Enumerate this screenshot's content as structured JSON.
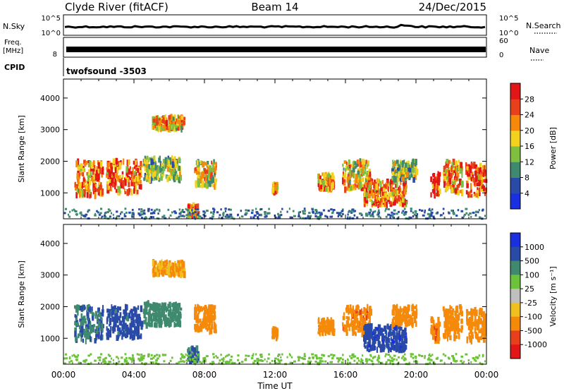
{
  "header": {
    "station": "Clyde River (fitACF)",
    "beam": "Beam 14",
    "date": "24/Dec/2015"
  },
  "status_panels": {
    "nsky_label": "N.Sky",
    "nsky_ticks": [
      "10^5",
      "10^0"
    ],
    "nsearch_label": "N.Search",
    "nsearch_ticks": [
      "10^5",
      "10^0"
    ],
    "freq_label_line1": "Freq.",
    "freq_label_line2": "[MHz]",
    "freq_ticks": [
      "8"
    ],
    "nave_label": "Nave",
    "nave_ticks": [
      "60",
      "0"
    ],
    "cpid_label": "CPID",
    "cpid_value": "twofsound -3503"
  },
  "colors": {
    "power_scale": [
      "#1a2fe0",
      "#2a4aa8",
      "#3f8a6e",
      "#7fbf3f",
      "#f2d21e",
      "#f58a0a",
      "#e8401a",
      "#e21616"
    ],
    "velocity_scale": [
      "#1a2fe0",
      "#2a4aa8",
      "#3f8a6e",
      "#6cc23a",
      "#bfbfbf",
      "#f0c020",
      "#f58a0a",
      "#e8401a",
      "#e21616"
    ]
  },
  "chart_data": [
    {
      "type": "heatmap",
      "name": "power",
      "ylabel": "Slant Range [km]",
      "yticks": [
        "1000",
        "2000",
        "3000",
        "4000"
      ],
      "ylim": [
        180,
        4600
      ],
      "xlim": [
        "00:00",
        "24:00"
      ],
      "colorbar_label": "Power [dB]",
      "colorbar_ticks": [
        "4",
        "8",
        "12",
        "16",
        "20",
        "24",
        "28"
      ],
      "clim": [
        0,
        32
      ],
      "echo_regions": [
        {
          "t0": 0.6,
          "t1": 2.2,
          "r0": 900,
          "r1": 2000,
          "level": 24
        },
        {
          "t0": 2.4,
          "t1": 4.4,
          "r0": 1000,
          "r1": 2000,
          "level": 26
        },
        {
          "t0": 4.5,
          "t1": 6.6,
          "r0": 1400,
          "r1": 2100,
          "level": 14
        },
        {
          "t0": 7.4,
          "t1": 8.6,
          "r0": 1200,
          "r1": 2000,
          "level": 18
        },
        {
          "t0": 5.0,
          "t1": 6.8,
          "r0": 3000,
          "r1": 3400,
          "level": 20
        },
        {
          "t0": 7.0,
          "t1": 7.6,
          "r0": 250,
          "r1": 600,
          "level": 20
        },
        {
          "t0": 11.8,
          "t1": 12.1,
          "r0": 1000,
          "r1": 1300,
          "level": 26
        },
        {
          "t0": 14.4,
          "t1": 15.3,
          "r0": 1100,
          "r1": 1600,
          "level": 22
        },
        {
          "t0": 15.8,
          "t1": 17.4,
          "r0": 1100,
          "r1": 2000,
          "level": 20
        },
        {
          "t0": 17.0,
          "t1": 19.4,
          "r0": 600,
          "r1": 1400,
          "level": 24
        },
        {
          "t0": 18.6,
          "t1": 20.0,
          "r0": 1400,
          "r1": 2000,
          "level": 14
        },
        {
          "t0": 20.8,
          "t1": 21.3,
          "r0": 900,
          "r1": 1600,
          "level": 28
        },
        {
          "t0": 21.5,
          "t1": 22.6,
          "r0": 1000,
          "r1": 2000,
          "level": 22
        },
        {
          "t0": 22.8,
          "t1": 23.9,
          "r0": 900,
          "r1": 1900,
          "level": 26
        },
        {
          "t0": 0.0,
          "t1": 23.9,
          "r0": 180,
          "r1": 500,
          "level": 8
        }
      ]
    },
    {
      "type": "heatmap",
      "name": "velocity",
      "ylabel": "Slant Range [km]",
      "yticks": [
        "1000",
        "2000",
        "3000",
        "4000"
      ],
      "ylim": [
        180,
        4600
      ],
      "xlim": [
        "00:00",
        "24:00"
      ],
      "colorbar_label": "Velocity [m s⁻¹]",
      "colorbar_ticks": [
        "1000",
        "500",
        "100",
        "25",
        "-25",
        "-100",
        "-500",
        "-1000"
      ],
      "echo_regions": [
        {
          "t0": 0.6,
          "t1": 2.2,
          "r0": 900,
          "r1": 2000,
          "level": 500
        },
        {
          "t0": 2.4,
          "t1": 4.4,
          "r0": 1000,
          "r1": 2000,
          "level": 700
        },
        {
          "t0": 4.5,
          "t1": 6.6,
          "r0": 1400,
          "r1": 2100,
          "level": 300
        },
        {
          "t0": 7.4,
          "t1": 8.6,
          "r0": 1200,
          "r1": 2000,
          "level": -300
        },
        {
          "t0": 5.0,
          "t1": 6.8,
          "r0": 3000,
          "r1": 3400,
          "level": -100
        },
        {
          "t0": 7.0,
          "t1": 7.6,
          "r0": 250,
          "r1": 700,
          "level": 600
        },
        {
          "t0": 11.8,
          "t1": 12.1,
          "r0": 1000,
          "r1": 1300,
          "level": -200
        },
        {
          "t0": 14.4,
          "t1": 15.3,
          "r0": 1100,
          "r1": 1600,
          "level": -300
        },
        {
          "t0": 15.8,
          "t1": 17.4,
          "r0": 1100,
          "r1": 2000,
          "level": -400
        },
        {
          "t0": 17.0,
          "t1": 19.4,
          "r0": 600,
          "r1": 1400,
          "level": 800
        },
        {
          "t0": 18.6,
          "t1": 20.0,
          "r0": 1400,
          "r1": 2000,
          "level": -200
        },
        {
          "t0": 20.8,
          "t1": 21.3,
          "r0": 900,
          "r1": 1600,
          "level": -400
        },
        {
          "t0": 21.5,
          "t1": 22.6,
          "r0": 1000,
          "r1": 2000,
          "level": -300
        },
        {
          "t0": 22.8,
          "t1": 23.9,
          "r0": 900,
          "r1": 1900,
          "level": -300
        },
        {
          "t0": 0.0,
          "t1": 23.9,
          "r0": 180,
          "r1": 500,
          "level": 60
        }
      ]
    }
  ],
  "xaxis": {
    "ticks": [
      "00:00",
      "04:00",
      "08:00",
      "12:00",
      "16:00",
      "20:00",
      "00:00"
    ],
    "label": "Time UT"
  }
}
